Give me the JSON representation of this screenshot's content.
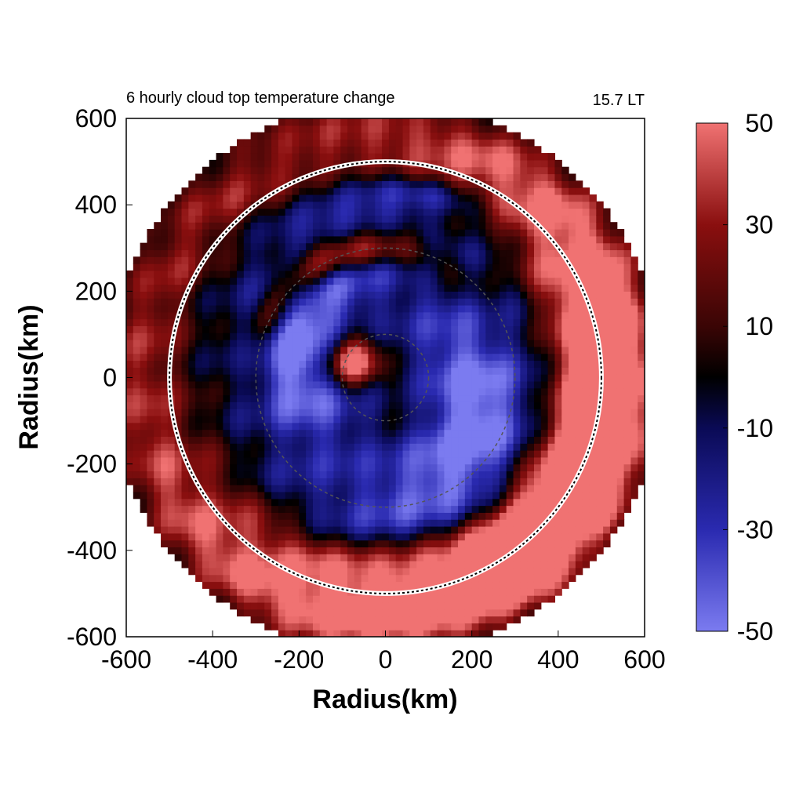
{
  "chart_data": {
    "type": "heatmap",
    "title": "6 hourly cloud top temperature change",
    "time_label": "15.7 LT",
    "xlabel": "Radius(km)",
    "ylabel": "Radius(km)",
    "xlim": [
      -600,
      600
    ],
    "ylim": [
      -600,
      600
    ],
    "x_ticks": [
      "-600",
      "-400",
      "-200",
      "0",
      "200",
      "400",
      "600"
    ],
    "y_ticks": [
      "600",
      "400",
      "200",
      "0",
      "-200",
      "-400",
      "-600"
    ],
    "colorbar": {
      "range": [
        -50,
        50
      ],
      "ticks": [
        "50",
        "30",
        "10",
        "-10",
        "-30",
        "-50"
      ],
      "colors": {
        "low": "#7b7bf0",
        "mid_low": "#0a0a55",
        "zero": "#000000",
        "mid_high": "#7a0a0a",
        "high": "#f07272"
      }
    },
    "reference_circles_km": {
      "solid_white": 500,
      "dashed_grey": [
        100,
        300
      ]
    },
    "field_description_values": {
      "outer_ring_warming": 50,
      "inner_core_cooling": -50,
      "background": 0
    }
  }
}
